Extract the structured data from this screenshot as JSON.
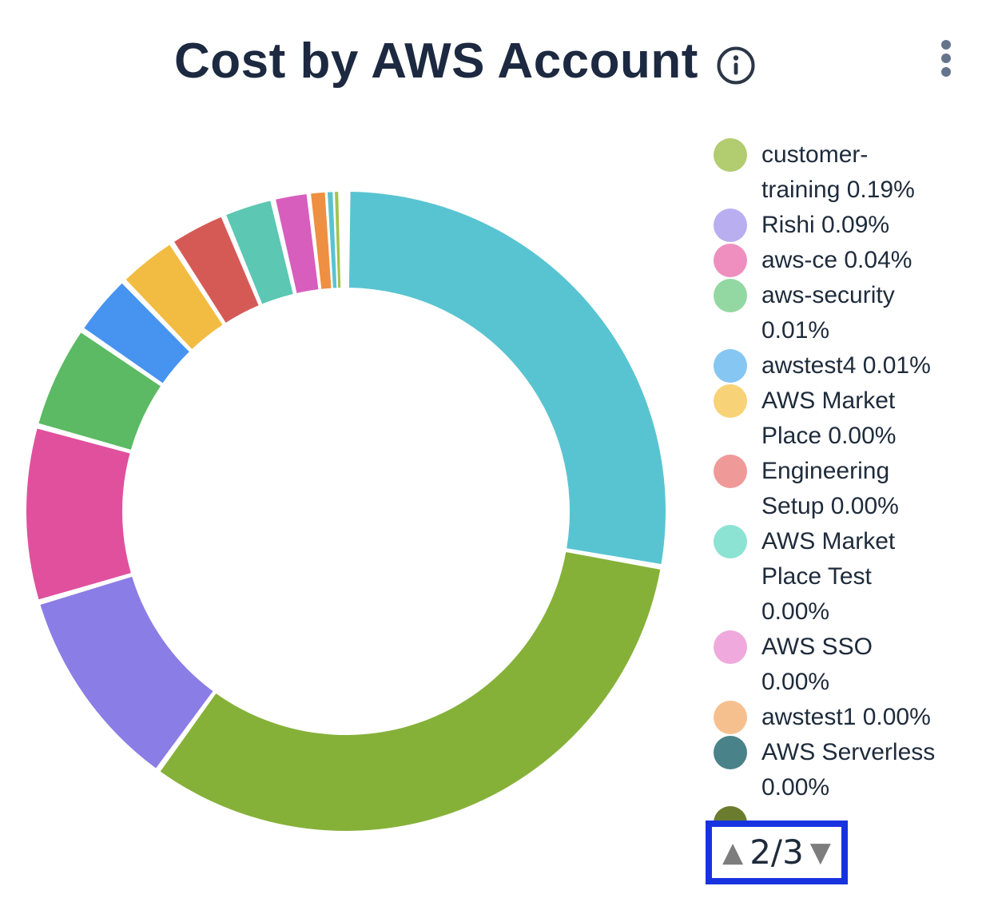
{
  "header": {
    "title": "Cost by AWS Account"
  },
  "icons": {
    "info": "info-icon",
    "menu": "kebab-menu-icon"
  },
  "colors": {
    "title_text": "#1c2940",
    "legend_text": "#1e2b3b",
    "pager_highlight": "#1733e0",
    "pager_triangles": "#7d7d7d",
    "kebab_dots": "#64748b"
  },
  "pagination": {
    "up": "▲",
    "display": "2/3",
    "down": "▼",
    "current_page": 2,
    "total_pages": 3
  },
  "chart_data": {
    "type": "donut",
    "title": "Cost by AWS Account",
    "legend_position": "right",
    "inner_radius_ratio": 0.7,
    "slices": [
      {
        "id": "slice-1",
        "color": "#59c4d1",
        "start_deg": 0.8,
        "end_deg": 99.5,
        "percent_of_circle": 27.4
      },
      {
        "id": "slice-2",
        "color": "#86b139",
        "start_deg": 100.5,
        "end_deg": 215.5,
        "percent_of_circle": 31.9
      },
      {
        "id": "slice-3",
        "color": "#8b7de6",
        "start_deg": 216.5,
        "end_deg": 253.0,
        "percent_of_circle": 10.1
      },
      {
        "id": "slice-4",
        "color": "#e0509d",
        "start_deg": 254.0,
        "end_deg": 285.0,
        "percent_of_circle": 8.6
      },
      {
        "id": "slice-5",
        "color": "#5bba63",
        "start_deg": 286.0,
        "end_deg": 304.0,
        "percent_of_circle": 5.0
      },
      {
        "id": "slice-6",
        "color": "#4793f0",
        "start_deg": 305.0,
        "end_deg": 315.5,
        "percent_of_circle": 2.9
      },
      {
        "id": "slice-7",
        "color": "#f2bb42",
        "start_deg": 316.5,
        "end_deg": 326.5,
        "percent_of_circle": 2.8
      },
      {
        "id": "slice-8",
        "color": "#d55a56",
        "start_deg": 327.5,
        "end_deg": 337.0,
        "percent_of_circle": 2.6
      },
      {
        "id": "slice-9",
        "color": "#5cc7b3",
        "start_deg": 338.0,
        "end_deg": 346.3,
        "percent_of_circle": 2.3
      },
      {
        "id": "slice-10",
        "color": "#d75ebd",
        "start_deg": 347.3,
        "end_deg": 352.9,
        "percent_of_circle": 1.6
      },
      {
        "id": "slice-11",
        "color": "#ef8f41",
        "start_deg": 353.7,
        "end_deg": 356.2,
        "percent_of_circle": 0.7
      },
      {
        "id": "slice-12",
        "color": "#59c4d1",
        "start_deg": 356.7,
        "end_deg": 357.6,
        "percent_of_circle": 0.25
      },
      {
        "id": "slice-13",
        "color": "#a2c34e",
        "start_deg": 358.0,
        "end_deg": 358.6,
        "percent_of_circle": 0.17
      }
    ],
    "legend_items": [
      {
        "label": "customer-training",
        "percent": "0.19%",
        "color": "#b2cc70"
      },
      {
        "label": "Rishi",
        "percent": "0.09%",
        "color": "#b9aef0"
      },
      {
        "label": "aws-ce",
        "percent": "0.04%",
        "color": "#ef8fc0"
      },
      {
        "label": "aws-security",
        "percent": "0.01%",
        "color": "#93d8a2"
      },
      {
        "label": "awstest4",
        "percent": "0.01%",
        "color": "#85c6f2"
      },
      {
        "label": "AWS Market Place",
        "percent": "0.00%",
        "color": "#f8d276"
      },
      {
        "label": "Engineering Setup",
        "percent": "0.00%",
        "color": "#ef9a98"
      },
      {
        "label": "AWS Market Place Test",
        "percent": "0.00%",
        "color": "#8ce3d3"
      },
      {
        "label": "AWS SSO",
        "percent": "0.00%",
        "color": "#efa9dc"
      },
      {
        "label": "awstest1",
        "percent": "0.00%",
        "color": "#f6c08e"
      },
      {
        "label": "AWS Serverless",
        "percent": "0.00%",
        "color": "#4a8289"
      },
      {
        "label": "",
        "percent": "",
        "color": "#6b7c2e",
        "clipped": true
      }
    ]
  }
}
